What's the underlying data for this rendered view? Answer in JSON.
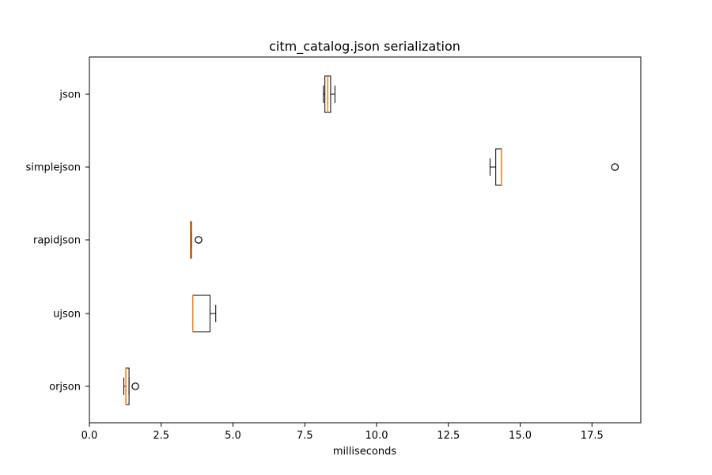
{
  "chart_data": {
    "type": "boxplot",
    "orientation": "horizontal",
    "title": "citm_catalog.json serialization",
    "xlabel": "milliseconds",
    "ylabel": "",
    "xlim": [
      0,
      19.2
    ],
    "xticks": [
      0.0,
      2.5,
      5.0,
      7.5,
      10.0,
      12.5,
      15.0,
      17.5
    ],
    "xtick_labels": [
      "0.0",
      "2.5",
      "5.0",
      "7.5",
      "10.0",
      "12.5",
      "15.0",
      "17.5"
    ],
    "categories": [
      "json",
      "simplejson",
      "rapidjson",
      "ujson",
      "orjson"
    ],
    "boxes": [
      {
        "name": "json",
        "whisker_low": 8.15,
        "q1": 8.2,
        "median": 8.3,
        "q3": 8.4,
        "whisker_high": 8.55,
        "outliers": []
      },
      {
        "name": "simplejson",
        "whisker_low": 13.95,
        "q1": 14.15,
        "median": 14.35,
        "q3": 14.35,
        "whisker_high": 14.35,
        "outliers": [
          18.3
        ]
      },
      {
        "name": "rapidjson",
        "whisker_low": 3.52,
        "q1": 3.52,
        "median": 3.52,
        "q3": 3.55,
        "whisker_high": 3.55,
        "outliers": [
          3.8
        ]
      },
      {
        "name": "ujson",
        "whisker_low": 3.6,
        "q1": 3.6,
        "median": 3.6,
        "q3": 4.2,
        "whisker_high": 4.4,
        "outliers": []
      },
      {
        "name": "orjson",
        "whisker_low": 1.2,
        "q1": 1.27,
        "median": 1.27,
        "q3": 1.38,
        "whisker_high": 1.38,
        "outliers": [
          1.6
        ]
      }
    ],
    "colors": {
      "box": "#000000",
      "median": "#ff7f0e"
    }
  }
}
